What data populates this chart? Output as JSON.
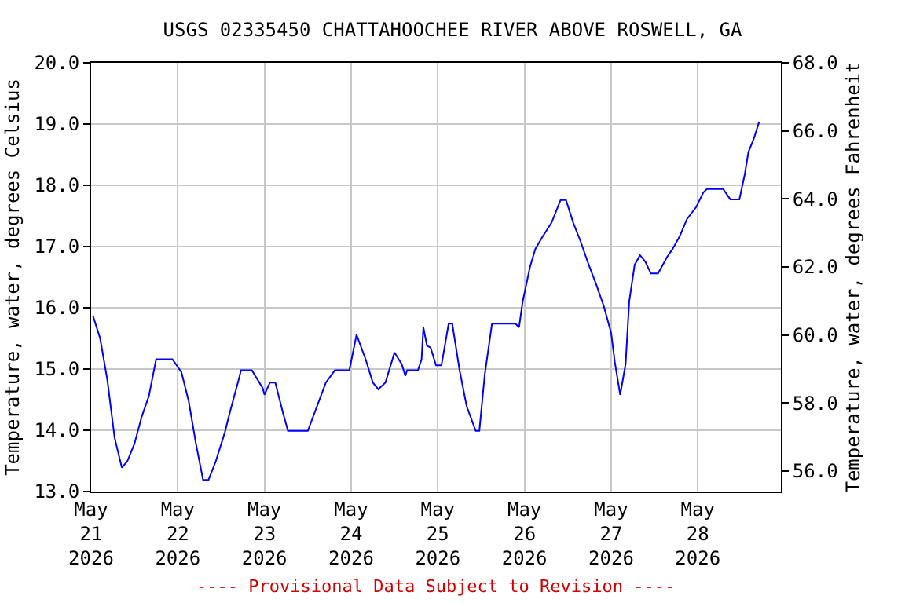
{
  "chart_data": {
    "type": "line",
    "title": "USGS 02335450 CHATTAHOOCHEE RIVER ABOVE ROSWELL, GA",
    "ylabel": "Temperature, water, degrees Celsius",
    "y2label": "Temperature, water, degrees Fahrenheit",
    "annotations": [
      "---- Provisional Data Subject to Revision ----"
    ],
    "xlim": [
      "2026-05-21T00:00",
      "2026-05-28T23:00"
    ],
    "xticks": [
      {
        "value": "2026-05-21",
        "label": "May\n21\n2026"
      },
      {
        "value": "2026-05-22",
        "label": "May\n22\n2026"
      },
      {
        "value": "2026-05-23",
        "label": "May\n23\n2026"
      },
      {
        "value": "2026-05-24",
        "label": "May\n24\n2026"
      },
      {
        "value": "2026-05-25",
        "label": "May\n25\n2026"
      },
      {
        "value": "2026-05-26",
        "label": "May\n26\n2026"
      },
      {
        "value": "2026-05-27",
        "label": "May\n27\n2026"
      },
      {
        "value": "2026-05-28",
        "label": "May\n28\n2026"
      }
    ],
    "ylim": [
      13,
      20
    ],
    "yticks": [
      {
        "value": 13,
        "label": "13.0"
      },
      {
        "value": 14,
        "label": "14.0"
      },
      {
        "value": 15,
        "label": "15.0"
      },
      {
        "value": 16,
        "label": "16.0"
      },
      {
        "value": 17,
        "label": "17.0"
      },
      {
        "value": 18,
        "label": "18.0"
      },
      {
        "value": 19,
        "label": "19.0"
      },
      {
        "value": 20,
        "label": "20.0"
      }
    ],
    "y2lim": [
      55.4,
      68
    ],
    "y2ticks": [
      {
        "value": 56,
        "label": "56.0"
      },
      {
        "value": 58,
        "label": "58.0"
      },
      {
        "value": 60,
        "label": "60.0"
      },
      {
        "value": 62,
        "label": "62.0"
      },
      {
        "value": 64,
        "label": "64.0"
      },
      {
        "value": 66,
        "label": "66.0"
      },
      {
        "value": 68,
        "label": "68.0"
      }
    ],
    "grid": true,
    "marker": "none",
    "line_style": "solid",
    "series": [
      {
        "color": "#0000ff",
        "x": [
          "2026-05-21T00:30",
          "2026-05-21T02:30",
          "2026-05-21T04:30",
          "2026-05-21T06:30",
          "2026-05-21T08:30",
          "2026-05-21T10:00",
          "2026-05-21T12:00",
          "2026-05-21T14:00",
          "2026-05-21T16:00",
          "2026-05-21T18:00",
          "2026-05-21T22:30",
          "2026-05-22T01:00",
          "2026-05-22T03:00",
          "2026-05-22T05:00",
          "2026-05-22T07:00",
          "2026-05-22T08:30",
          "2026-05-22T10:30",
          "2026-05-22T13:00",
          "2026-05-22T14:30",
          "2026-05-22T17:00",
          "2026-05-22T17:30",
          "2026-05-22T20:30",
          "2026-05-22T23:30",
          "2026-05-23T00:00",
          "2026-05-23T01:30",
          "2026-05-23T03:00",
          "2026-05-23T05:00",
          "2026-05-23T06:30",
          "2026-05-23T12:00",
          "2026-05-23T17:00",
          "2026-05-23T19:30",
          "2026-05-23T23:30",
          "2026-05-24T01:30",
          "2026-05-24T04:00",
          "2026-05-24T06:00",
          "2026-05-24T07:30",
          "2026-05-24T09:30",
          "2026-05-24T12:00",
          "2026-05-24T14:00",
          "2026-05-24T15:00",
          "2026-05-24T15:30",
          "2026-05-24T18:30",
          "2026-05-24T19:30",
          "2026-05-24T20:00",
          "2026-05-24T21:00",
          "2026-05-24T22:00",
          "2026-05-24T23:30",
          "2026-05-25T01:00",
          "2026-05-25T03:00",
          "2026-05-25T04:00",
          "2026-05-25T06:00",
          "2026-05-25T08:00",
          "2026-05-25T10:30",
          "2026-05-25T11:30",
          "2026-05-25T13:00",
          "2026-05-25T15:00",
          "2026-05-25T21:30",
          "2026-05-25T22:30",
          "2026-05-25T23:30",
          "2026-05-26T01:30",
          "2026-05-26T03:00",
          "2026-05-26T05:00",
          "2026-05-26T07:30",
          "2026-05-26T10:00",
          "2026-05-26T11:30",
          "2026-05-26T13:30",
          "2026-05-26T15:30",
          "2026-05-26T17:30",
          "2026-05-26T20:00",
          "2026-05-26T22:00",
          "2026-05-27T00:00",
          "2026-05-27T01:00",
          "2026-05-27T02:30",
          "2026-05-27T04:00",
          "2026-05-27T05:00",
          "2026-05-27T06:30",
          "2026-05-27T08:00",
          "2026-05-27T09:30",
          "2026-05-27T11:00",
          "2026-05-27T13:00",
          "2026-05-27T15:30",
          "2026-05-27T17:00",
          "2026-05-27T19:00",
          "2026-05-27T21:00",
          "2026-05-27T23:30",
          "2026-05-28T01:30",
          "2026-05-28T02:30",
          "2026-05-28T07:00",
          "2026-05-28T09:00",
          "2026-05-28T11:30",
          "2026-05-28T13:00",
          "2026-05-28T14:00",
          "2026-05-28T15:30",
          "2026-05-28T17:00"
        ],
        "values": [
          15.87,
          15.5,
          14.82,
          13.88,
          13.39,
          13.49,
          13.78,
          14.22,
          14.56,
          15.16,
          15.16,
          14.95,
          14.48,
          13.79,
          13.19,
          13.19,
          13.49,
          13.96,
          14.31,
          14.86,
          14.98,
          14.98,
          14.69,
          14.58,
          14.78,
          14.78,
          14.31,
          13.99,
          13.99,
          14.78,
          14.98,
          14.98,
          15.56,
          15.16,
          14.78,
          14.67,
          14.78,
          15.27,
          15.08,
          14.89,
          14.98,
          14.98,
          15.16,
          15.68,
          15.38,
          15.35,
          15.06,
          15.06,
          15.74,
          15.74,
          14.99,
          14.39,
          13.99,
          13.99,
          14.91,
          15.74,
          15.74,
          15.68,
          16.1,
          16.66,
          16.96,
          17.16,
          17.39,
          17.76,
          17.76,
          17.39,
          17.09,
          16.75,
          16.36,
          16.02,
          15.59,
          15.12,
          14.58,
          15.08,
          16.1,
          16.7,
          16.86,
          16.75,
          16.56,
          16.56,
          16.83,
          16.96,
          17.17,
          17.45,
          17.64,
          17.88,
          17.94,
          17.94,
          17.77,
          17.77,
          18.18,
          18.54,
          18.76,
          19.04
        ]
      }
    ]
  }
}
